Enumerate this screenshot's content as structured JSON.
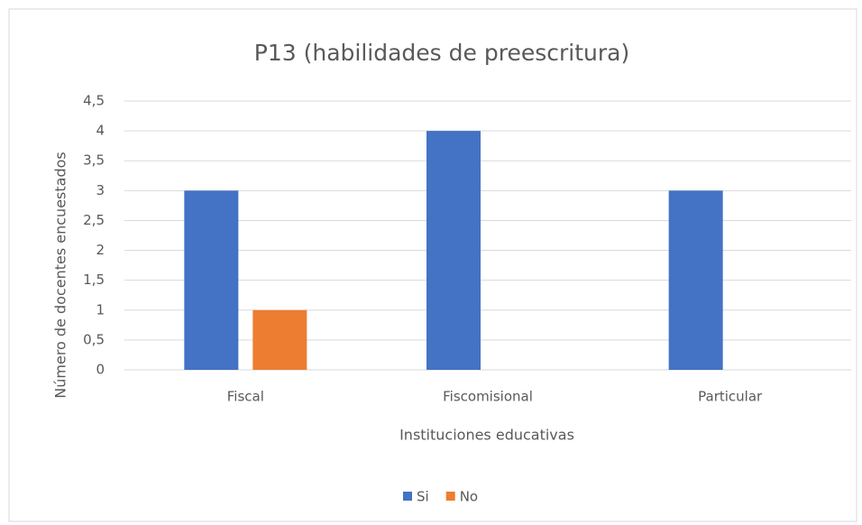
{
  "chart_data": {
    "type": "bar",
    "title": "P13 (habilidades de preescritura)",
    "x_label": "Instituciones educativas",
    "y_label": "Número de docentes encuestados",
    "categories": [
      "Fiscal",
      "Fiscomisional",
      "Particular"
    ],
    "series": [
      {
        "name": "Si",
        "color": "#4472c4",
        "values": [
          3,
          4,
          3
        ]
      },
      {
        "name": "No",
        "color": "#ed7d31",
        "values": [
          1,
          0,
          0
        ]
      }
    ],
    "ylim": [
      0,
      4.5
    ],
    "yticks": [
      0,
      {
        "value": 0.5,
        "label": "0,5"
      },
      1,
      {
        "value": 1.5,
        "label": "1,5"
      },
      2,
      {
        "value": 2.5,
        "label": "2,5"
      },
      3,
      {
        "value": 3.5,
        "label": "3,5"
      },
      4,
      {
        "value": 4.5,
        "label": "4,5"
      }
    ],
    "grid": true,
    "legend": "bottom"
  }
}
